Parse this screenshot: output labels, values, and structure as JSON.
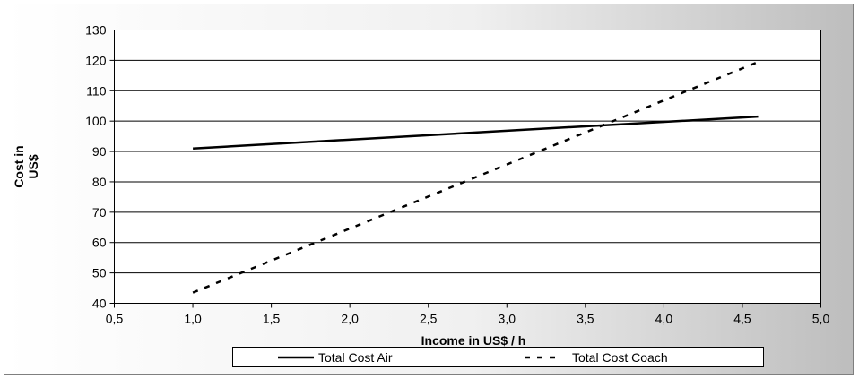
{
  "chart_data": {
    "type": "line",
    "title": "",
    "xlabel": "Income in US$ / h",
    "ylabel_lines": [
      "Cost in",
      "US$"
    ],
    "xlim": [
      0.5,
      5.0
    ],
    "ylim": [
      40,
      130
    ],
    "x_ticks": [
      "0,5",
      "1,0",
      "1,5",
      "2,0",
      "2,5",
      "3,0",
      "3,5",
      "4,0",
      "4,5",
      "5,0"
    ],
    "x_tick_values": [
      0.5,
      1.0,
      1.5,
      2.0,
      2.5,
      3.0,
      3.5,
      4.0,
      4.5,
      5.0
    ],
    "y_ticks": [
      "40",
      "50",
      "60",
      "70",
      "80",
      "90",
      "100",
      "110",
      "120",
      "130"
    ],
    "y_tick_values": [
      40,
      50,
      60,
      70,
      80,
      90,
      100,
      110,
      120,
      130
    ],
    "grid": "horizontal",
    "legend_position": "bottom",
    "series": [
      {
        "name": "Total Cost Air",
        "style": "solid",
        "color": "#000000",
        "x": [
          1.0,
          4.6
        ],
        "y": [
          91.0,
          101.5
        ]
      },
      {
        "name": "Total Cost Coach",
        "style": "dashed",
        "color": "#000000",
        "x": [
          1.0,
          4.6
        ],
        "y": [
          43.5,
          119.5
        ]
      }
    ]
  },
  "colors": {
    "frame_background": "#d9d9d9",
    "plot_background": "#ffffff",
    "gridline": "#000000"
  }
}
